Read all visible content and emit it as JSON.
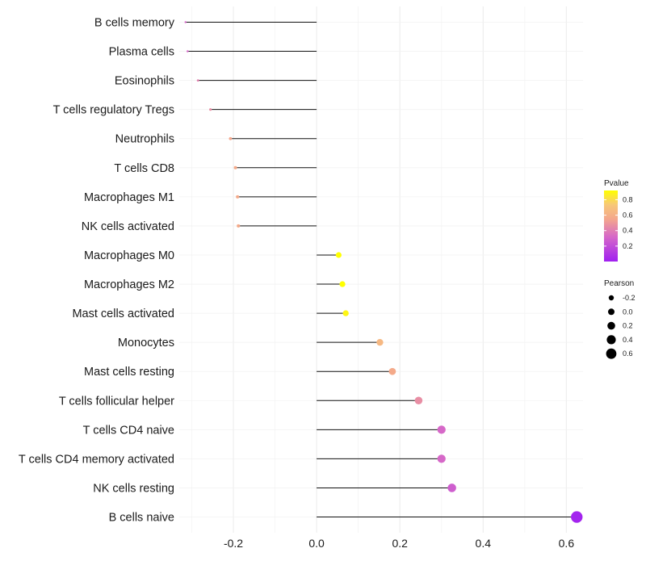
{
  "chart_data": {
    "type": "lollipop",
    "title": "",
    "xlabel": "",
    "ylabel": "",
    "xlim": [
      -0.33,
      0.64
    ],
    "x_ticks": [
      -0.2,
      0.0,
      0.2,
      0.4,
      0.6
    ],
    "x_tick_labels": [
      "-0.2",
      "0.0",
      "0.2",
      "0.4",
      "0.6"
    ],
    "grid": true,
    "categories": [
      "B cells memory",
      "Plasma cells",
      "Eosinophils",
      "T cells regulatory  Tregs",
      "Neutrophils",
      "T cells CD8",
      "Macrophages M1",
      "NK cells activated",
      "Macrophages M0",
      "Macrophages M2",
      "Mast cells activated",
      "Monocytes",
      "Mast cells resting",
      "T cells follicular helper",
      "T cells CD4 naive",
      "T cells CD4 memory activated",
      "NK cells resting",
      "B cells naive"
    ],
    "pearson": [
      -0.315,
      -0.31,
      -0.285,
      -0.255,
      -0.207,
      -0.195,
      -0.19,
      -0.188,
      0.053,
      0.062,
      0.07,
      0.152,
      0.182,
      0.245,
      0.3,
      0.3,
      0.325,
      0.625
    ],
    "pvalue": [
      0.35,
      0.35,
      0.45,
      0.5,
      0.6,
      0.62,
      0.62,
      0.62,
      0.95,
      0.92,
      0.9,
      0.7,
      0.62,
      0.5,
      0.35,
      0.35,
      0.3,
      0.02
    ],
    "legend_pvalue": {
      "title": "Pvalue",
      "ticks": [
        "0.2",
        "0.4",
        "0.6",
        "0.8"
      ],
      "tick_values": [
        0.2,
        0.4,
        0.6,
        0.8
      ],
      "range": [
        0.0,
        0.92
      ],
      "color_low": "#a020f0",
      "color_mid": "#f5a0a0",
      "color_high": "#ffff00",
      "placement": "right"
    },
    "legend_pearson": {
      "title": "Pearson",
      "labels": [
        "-0.2",
        "0.0",
        "0.2",
        "0.4",
        "0.6"
      ],
      "values": [
        -0.2,
        0.0,
        0.2,
        0.4,
        0.6
      ],
      "placement": "right"
    }
  }
}
